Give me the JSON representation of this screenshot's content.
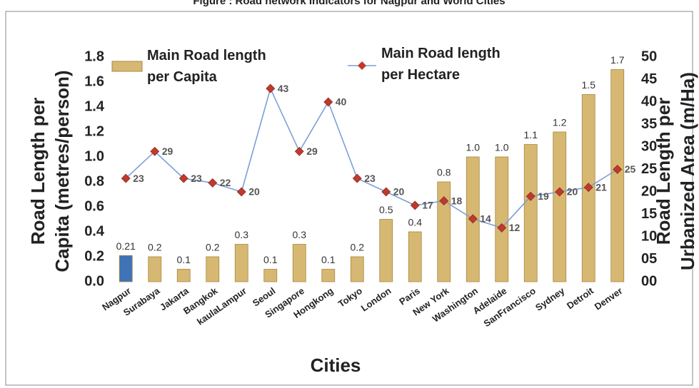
{
  "chart_data": {
    "type": "bar_line",
    "title": "Figure : Road network Indicators for Nagpur and World Cities",
    "x_label": "Cities",
    "y_label": "Road Length per Capita (metres/person)",
    "y2_label": "Road Length per Urbanized Area (m/Ha)",
    "categories": [
      "Nagpur",
      "Surabaya",
      "Jakarta",
      "Bangkok",
      "kaulaLampur",
      "Seoul",
      "Singapore",
      "Hongkong",
      "Tokyo",
      "London",
      "Paris",
      "New York",
      "Washington",
      "Adelaide",
      "SanFrancisco",
      "Sydney",
      "Detroit",
      "Denver"
    ],
    "series": [
      {
        "name": "Main Road length per Capita",
        "type": "bar",
        "color": "#d6b872",
        "colors": [
          "#3f73b8",
          "#d6b872",
          "#d6b872",
          "#d6b872",
          "#d6b872",
          "#d6b872",
          "#d6b872",
          "#d6b872",
          "#d6b872",
          "#d6b872",
          "#d6b872",
          "#d6b872",
          "#d6b872",
          "#d6b872",
          "#d6b872",
          "#d6b872",
          "#d6b872",
          "#d6b872"
        ],
        "values": [
          0.21,
          0.2,
          0.1,
          0.2,
          0.3,
          0.1,
          0.3,
          0.1,
          0.2,
          0.5,
          0.4,
          0.8,
          1.0,
          1.0,
          1.1,
          1.2,
          1.5,
          1.7
        ],
        "value_labels": [
          "0.21",
          "0.2",
          "0.1",
          "0.2",
          "0.3",
          "0.1",
          "0.3",
          "0.1",
          "0.2",
          "0.5",
          "0.4",
          "0.8",
          "1.0",
          "1.0",
          "1.1",
          "1.2",
          "1.5",
          "1.7"
        ]
      },
      {
        "name": "Main Road length per Hectare",
        "type": "line",
        "axis": "y2",
        "color": "#7c9fd6",
        "marker_color": "#c0392b",
        "values": [
          23,
          29,
          23,
          22,
          20,
          43,
          29,
          40,
          23,
          20,
          17,
          18,
          14,
          12,
          19,
          20,
          21,
          25
        ]
      }
    ],
    "ylim": [
      0,
      1.8
    ],
    "yticks": [
      {
        "value": 0,
        "label": "0.0"
      },
      0.2,
      0.4,
      0.6,
      0.8,
      {
        "value": 1,
        "label": "1.0"
      },
      1.2,
      1.4,
      1.6,
      1.8
    ],
    "y2lim": [
      0,
      50
    ],
    "y2ticks": [
      {
        "value": 0,
        "label": "00"
      },
      {
        "value": 5,
        "label": "05"
      },
      10,
      15,
      20,
      25,
      30,
      35,
      40,
      45,
      50
    ]
  }
}
